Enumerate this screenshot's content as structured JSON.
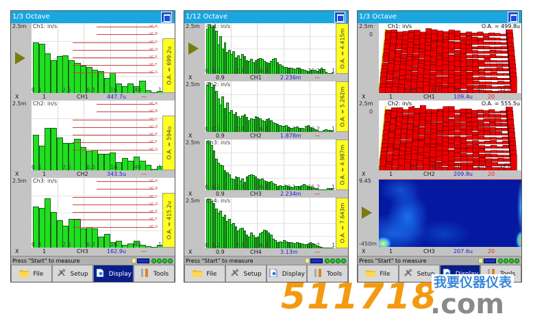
{
  "panels": [
    {
      "title": "1/3 Octave",
      "kind": "bar",
      "charts": [
        {
          "label": "Ch1: in/s",
          "y_max": "2.5m",
          "y_min": "0",
          "ticks": [
            "1",
            "2.5",
            "6.3",
            "16",
            "40",
            "125"
          ],
          "x_label": "X",
          "cursor_x": "1",
          "channel": "CH1",
          "value": "447.7u",
          "marker": "—",
          "oa": "O.A. = 699.2u",
          "arrow": true,
          "vc_lines": [
            "VC A",
            "VC B",
            "VC C",
            "VC D",
            "VC E",
            "VC F",
            "VC G"
          ],
          "bars": [
            1.85,
            1.8,
            1.45,
            1.2,
            1.35,
            1.37,
            1.2,
            1.1,
            1.0,
            0.95,
            0.85,
            0.8,
            0.55,
            0.75,
            0.35,
            0.25,
            0.35,
            0.25,
            0.45,
            0.1,
            0,
            0.08
          ]
        },
        {
          "label": "Ch2: in/s",
          "y_max": "2.5m",
          "y_min": "0",
          "ticks": [
            "1",
            "2.5",
            "6.3",
            "16",
            "40",
            "125"
          ],
          "x_label": "X",
          "cursor_x": "1",
          "channel": "CH2",
          "value": "343.5u",
          "marker": "—",
          "oa": "O.A. = 594u",
          "arrow": false,
          "vc_lines": [
            "VC A",
            "VC B",
            "VC C",
            "VC D",
            "VC E",
            "VC F",
            "VC G"
          ],
          "bars": [
            1.3,
            0.9,
            1.55,
            1.55,
            1.2,
            1.0,
            1.0,
            1.15,
            0.85,
            0.7,
            0.75,
            0.6,
            0.6,
            0.65,
            0.3,
            0.45,
            0.35,
            0.5,
            0.35,
            0.2,
            0.05,
            0.15
          ]
        },
        {
          "label": "Ch3: in/s",
          "y_max": "2.5m",
          "y_min": "0",
          "ticks": [
            "1",
            "2.5",
            "6.3",
            "16",
            "40",
            "125"
          ],
          "x_label": "X",
          "cursor_x": "1",
          "channel": "CH3",
          "value": "162.9u",
          "marker": "—",
          "oa": "O.A. = 415.2u",
          "arrow": false,
          "vc_lines": [
            "VC A",
            "VC B",
            "VC C",
            "VC D",
            "VC E",
            "VC F",
            "VC G"
          ],
          "bars": [
            1.5,
            1.45,
            1.8,
            1.3,
            1.0,
            0.8,
            1.05,
            1.05,
            0.7,
            0.75,
            0.7,
            0.4,
            0.5,
            0.2,
            0.25,
            0.1,
            0.15,
            0.25,
            0.1,
            0.05,
            0.02,
            0.1
          ]
        }
      ],
      "status": "Press \"Start\" to measure",
      "active_tab": 2
    },
    {
      "title": "1/12 Octave",
      "kind": "bar",
      "charts": [
        {
          "label": "Ch1: in/s",
          "y_max": "2.5m",
          "y_min": "0",
          "ticks": [
            "0.9",
            "2.4",
            "6.4",
            "13.1",
            "36.2",
            "135"
          ],
          "x_label": "X",
          "cursor_x": "0.9",
          "channel": "CH1",
          "value": "2.236m",
          "marker": "—",
          "oa": "O.A. = 4.415m",
          "arrow": true,
          "bars": [
            2.3,
            2.5,
            2.4,
            2.45,
            2.2,
            1.5,
            1.9,
            1.3,
            1.6,
            1.1,
            1.2,
            1.0,
            1.15,
            0.85,
            0.95,
            0.75,
            1.0,
            0.9,
            0.7,
            0.65,
            0.75,
            0.6,
            0.7,
            0.75,
            0.8,
            0.75,
            0.65,
            0.6,
            0.55,
            0.65,
            0.75,
            0.8,
            0.6,
            0.5,
            0.4,
            0.35,
            0.35,
            0.32,
            0.3,
            0.28,
            0.25,
            0.3,
            0.32,
            0.25,
            0.2,
            0.18,
            0.15,
            0.2,
            0.22,
            0.2,
            0.15,
            0.25,
            0.3,
            0.25,
            0.1,
            0.02,
            0.05,
            0.08
          ]
        },
        {
          "label": "Ch2: in/s",
          "y_max": "2.5m",
          "y_min": "0",
          "ticks": [
            "0.9",
            "2.4",
            "6.4",
            "13.1",
            "36.2",
            "135"
          ],
          "x_label": "X",
          "cursor_x": "0.9",
          "channel": "CH2",
          "value": "1.878m",
          "marker": "—",
          "oa": "O.A. = 5.262m",
          "arrow": false,
          "bars": [
            2.4,
            2.5,
            2.3,
            2.4,
            2.1,
            1.7,
            1.4,
            1.8,
            1.2,
            1.5,
            1.0,
            1.1,
            0.9,
            1.0,
            0.8,
            0.7,
            0.85,
            0.9,
            0.75,
            0.6,
            0.7,
            0.65,
            0.8,
            0.75,
            0.7,
            0.6,
            0.55,
            0.65,
            0.7,
            0.6,
            0.5,
            0.45,
            0.4,
            0.35,
            0.3,
            0.3,
            0.35,
            0.25,
            0.22,
            0.2,
            0.25,
            0.28,
            0.22,
            0.2,
            0.18,
            0.3,
            0.35,
            0.25,
            0.2,
            0.15,
            0.1,
            0.05,
            0.05,
            0.1,
            0.15,
            0.12,
            0.1,
            0.08
          ]
        },
        {
          "label": "Ch3: in/s",
          "y_max": "2.5m",
          "y_min": "0",
          "ticks": [
            "0.9",
            "2.4",
            "6.4",
            "13.1",
            "36.2",
            "135"
          ],
          "x_label": "X",
          "cursor_x": "0.9",
          "channel": "CH3",
          "value": "2.234m",
          "marker": "—",
          "oa": "O.A. = 4.987m",
          "arrow": false,
          "bars": [
            2.5,
            2.45,
            2.3,
            2.0,
            1.6,
            1.4,
            1.3,
            1.25,
            1.0,
            0.9,
            0.8,
            0.6,
            0.55,
            0.7,
            0.65,
            0.5,
            0.6,
            0.4,
            0.7,
            0.75,
            0.8,
            0.75,
            0.7,
            0.6,
            0.55,
            0.6,
            0.5,
            0.45,
            0.4,
            0.45,
            0.35,
            0.3,
            0.2,
            0.25,
            0.2,
            0.22,
            0.25,
            0.2,
            0.18,
            0.15,
            0.2,
            0.22,
            0.2,
            0.25,
            0.3,
            0.25,
            0.2,
            0.18,
            0.15,
            0.1,
            0.08,
            0.05,
            0.02,
            0.02,
            0.05,
            0.1,
            0.12,
            0.1
          ]
        },
        {
          "label": "Ch4: in/s",
          "y_max": "2.5m",
          "y_min": "0",
          "ticks": [
            "0.9",
            "2.4",
            "6.4",
            "13.1",
            "36.2",
            "135"
          ],
          "x_label": "X",
          "cursor_x": "0.9",
          "channel": "CH4",
          "value": "3.13m",
          "marker": "—",
          "oa": "O.A. = 7.643m",
          "arrow": false,
          "bars": [
            2.5,
            2.5,
            2.4,
            2.3,
            2.0,
            1.8,
            1.9,
            1.6,
            1.7,
            1.4,
            1.5,
            1.2,
            1.3,
            1.1,
            0.9,
            1.0,
            1.05,
            0.9,
            0.7,
            0.6,
            0.8,
            0.65,
            0.55,
            0.6,
            0.75,
            0.85,
            0.95,
            0.9,
            0.8,
            0.7,
            0.5,
            0.4,
            0.3,
            0.35,
            0.3,
            0.4,
            0.35,
            0.3,
            0.3,
            0.28,
            0.25,
            0.3,
            0.28,
            0.25,
            0.22,
            0.2,
            0.25,
            0.3,
            0.25,
            0.2,
            0.15,
            0.1,
            0.08,
            0.05,
            0.05,
            0.03,
            0.02,
            0.02
          ]
        }
      ],
      "status": "Press \"Start\" to measure",
      "active_tab": -1
    },
    {
      "title": "1/3 Octave",
      "kind": "waterfall",
      "charts": [
        {
          "type": "waterfall",
          "label": "Ch1: in/s",
          "y_max": "2.5m",
          "y_min": "0",
          "ticks": [
            "2.5",
            "6.3",
            "16",
            "40",
            "125"
          ],
          "x_label": "X",
          "cursor_x": "1",
          "channel": "CH1",
          "value": "109.4u",
          "marker": "20",
          "oa": "O.A. = 499.8u",
          "arrow": false
        },
        {
          "type": "waterfall",
          "label": "Ch2: in/s",
          "y_max": "2.5m",
          "y_min": "0",
          "ticks": [
            "2.5",
            "6.3",
            "16",
            "40",
            "125"
          ],
          "x_label": "X",
          "cursor_x": "1",
          "channel": "CH2",
          "value": "209.8u",
          "marker": "20",
          "oa": "O.A. = 555.5u",
          "arrow": false
        },
        {
          "type": "heatmap",
          "label": "",
          "y_max": "9.45",
          "y_min": "-450m",
          "ticks": [],
          "x_label": "X",
          "cursor_x": "1",
          "channel": "CH3",
          "value": "207.6u",
          "marker": "20",
          "oa": "",
          "arrow": true
        }
      ],
      "status": "Press \"Start\" to measure",
      "active_tab": 2
    }
  ],
  "toolbar": [
    {
      "label": "File",
      "icon": "folder-icon"
    },
    {
      "label": "Setup",
      "icon": "wrench-icon"
    },
    {
      "label": "Display",
      "icon": "document-icon"
    },
    {
      "label": "Tools",
      "icon": "tools-icon"
    }
  ],
  "colors": {
    "title_bar": "#1aa6df",
    "bar_fill": "#1fe01f",
    "waterfall_fill": "#ee0000",
    "value_text": "#1a1ad0",
    "marker_text": "#e02020",
    "oa_strip": "#ffff20",
    "active_tab": "#0a1e8a"
  },
  "watermark": {
    "number": "511718",
    "domain": ".com",
    "chinese": "我要仪器仪表"
  }
}
